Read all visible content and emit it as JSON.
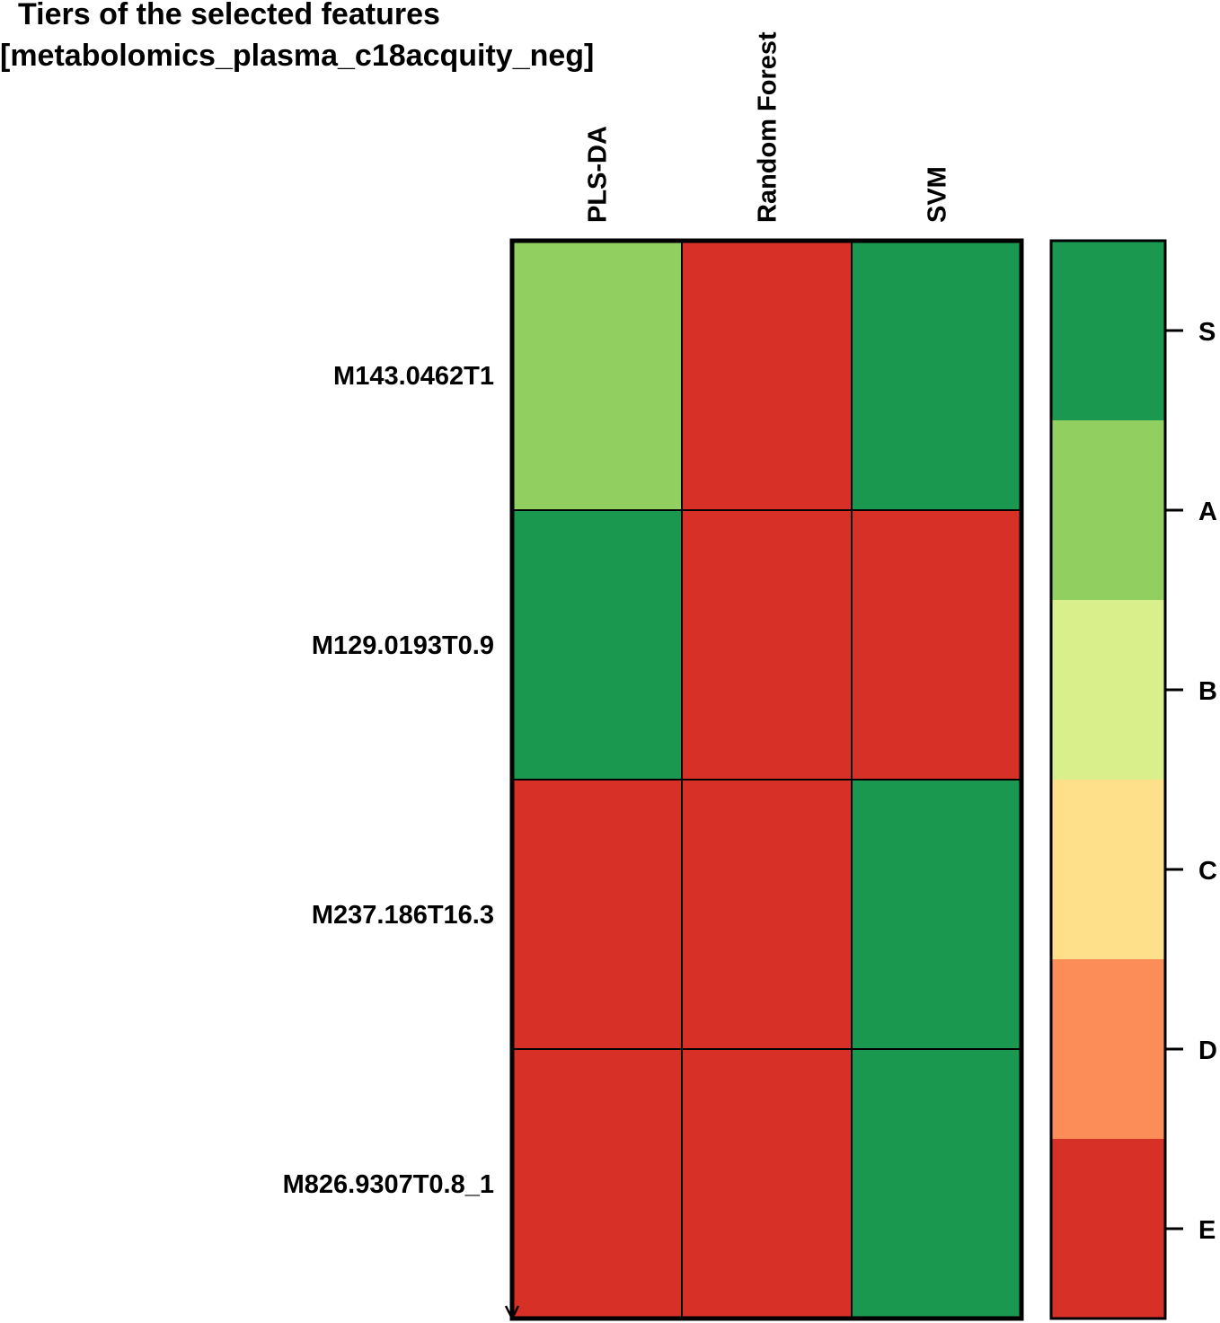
{
  "chart_data": {
    "type": "heatmap",
    "title": "Tiers of the selected features",
    "subtitle": "[metabolomics_plasma_c18acquity_neg]",
    "columns": [
      "PLS-DA",
      "Random Forest",
      "SVM"
    ],
    "rows": [
      "M143.0462T1",
      "M129.0193T0.9",
      "M237.186T16.3",
      "M826.9307T0.8_1"
    ],
    "values": [
      [
        "A",
        "E",
        "S"
      ],
      [
        "S",
        "E",
        "E"
      ],
      [
        "E",
        "E",
        "S"
      ],
      [
        "E",
        "E",
        "S"
      ]
    ],
    "legend": {
      "position": "right",
      "tiers": [
        "S",
        "A",
        "B",
        "C",
        "D",
        "E"
      ],
      "colors": {
        "S": "#1a9850",
        "A": "#91cf60",
        "B": "#d9ef8b",
        "C": "#fee08b",
        "D": "#fc8d59",
        "E": "#d73027"
      }
    }
  }
}
